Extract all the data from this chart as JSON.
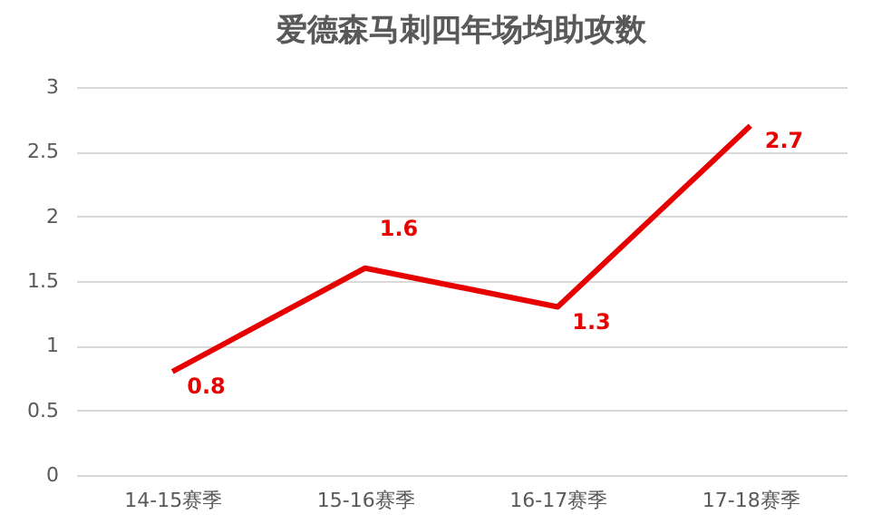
{
  "chart_data": {
    "type": "line",
    "title": "爱德森马刺四年场均助攻数",
    "categories": [
      "14-15赛季",
      "15-16赛季",
      "16-17赛季",
      "17-18赛季"
    ],
    "series": [
      {
        "color": "#e60000",
        "values": [
          0.8,
          1.6,
          1.3,
          2.7
        ]
      }
    ],
    "ylim": [
      0,
      3
    ],
    "yticks": [
      0,
      0.5,
      1,
      1.5,
      2,
      2.5,
      3
    ],
    "grid": "y",
    "data_labels": true,
    "marker": "none",
    "line_style": "solid"
  }
}
